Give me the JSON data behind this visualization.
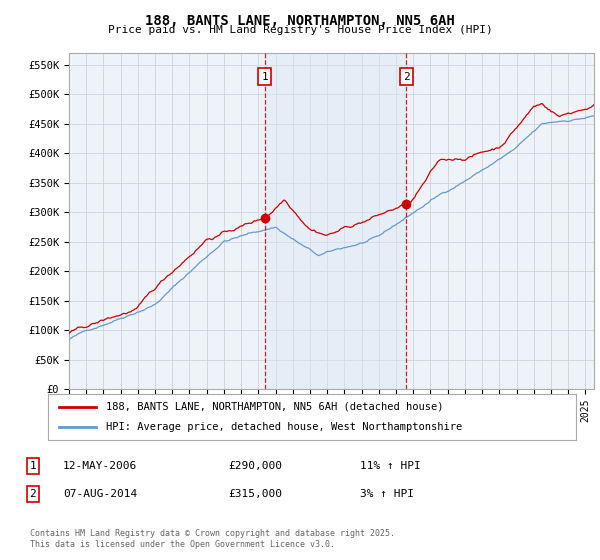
{
  "title": "188, BANTS LANE, NORTHAMPTON, NN5 6AH",
  "subtitle": "Price paid vs. HM Land Registry's House Price Index (HPI)",
  "ylabel_ticks": [
    "£0",
    "£50K",
    "£100K",
    "£150K",
    "£200K",
    "£250K",
    "£300K",
    "£350K",
    "£400K",
    "£450K",
    "£500K",
    "£550K"
  ],
  "ytick_values": [
    0,
    50000,
    100000,
    150000,
    200000,
    250000,
    300000,
    350000,
    400000,
    450000,
    500000,
    550000
  ],
  "ylim": [
    0,
    570000
  ],
  "xlim_start": 1995.0,
  "xlim_end": 2025.5,
  "xtick_years": [
    1995,
    1996,
    1997,
    1998,
    1999,
    2000,
    2001,
    2002,
    2003,
    2004,
    2005,
    2006,
    2007,
    2008,
    2009,
    2010,
    2011,
    2012,
    2013,
    2014,
    2015,
    2016,
    2017,
    2018,
    2019,
    2020,
    2021,
    2022,
    2023,
    2024,
    2025
  ],
  "red_color": "#cc0000",
  "blue_color": "#6699cc",
  "shade_color": "#dce8f5",
  "marker1_x": 2006.37,
  "marker1_y": 290000,
  "marker1_label": "1",
  "marker1_date": "12-MAY-2006",
  "marker1_price": "£290,000",
  "marker1_hpi": "11% ↑ HPI",
  "marker2_x": 2014.6,
  "marker2_y": 315000,
  "marker2_label": "2",
  "marker2_date": "07-AUG-2014",
  "marker2_price": "£315,000",
  "marker2_hpi": "3% ↑ HPI",
  "legend_line1": "188, BANTS LANE, NORTHAMPTON, NN5 6AH (detached house)",
  "legend_line2": "HPI: Average price, detached house, West Northamptonshire",
  "footnote": "Contains HM Land Registry data © Crown copyright and database right 2025.\nThis data is licensed under the Open Government Licence v3.0.",
  "background_color": "#ffffff",
  "plot_bg_color": "#eef3fa",
  "grid_color": "#cccccc"
}
